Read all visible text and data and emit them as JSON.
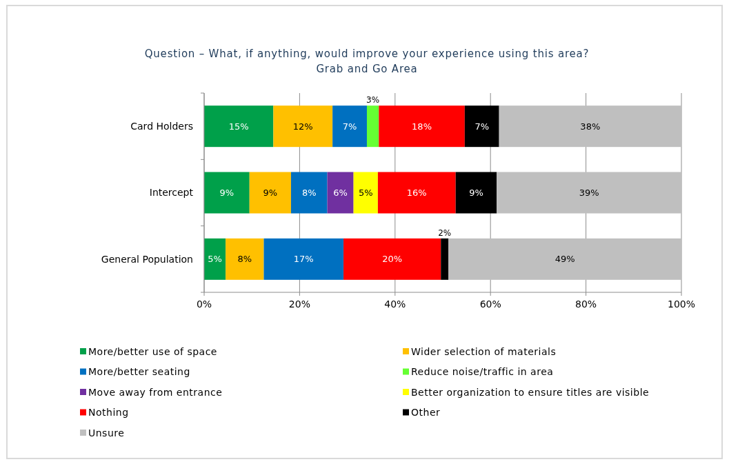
{
  "chart_data": {
    "type": "bar",
    "orientation": "horizontal",
    "stacked": true,
    "title": "Question – What, if anything, would improve your experience using this area?",
    "subtitle": "Grab and Go Area",
    "categories": [
      "Card Holders",
      "Intercept",
      "General Population"
    ],
    "series": [
      {
        "name": "More/better use of space",
        "color": "#00a04a",
        "values": [
          14.5,
          9.5,
          4.5
        ],
        "value_labels": [
          "15%",
          "9%",
          "5%"
        ]
      },
      {
        "name": "Wider selection of materials",
        "color": "#ffc000",
        "values": [
          12.4,
          8.7,
          8.0
        ],
        "value_labels": [
          "12%",
          "9%",
          "8%"
        ]
      },
      {
        "name": "More/better seating",
        "color": "#0070c0",
        "values": [
          7.2,
          7.6,
          16.7
        ],
        "value_labels": [
          "7%",
          "8%",
          "17%"
        ]
      },
      {
        "name": "Reduce noise/traffic in area",
        "color": "#66ff33",
        "values": [
          2.5,
          null,
          null
        ],
        "value_labels": [
          "3%",
          null,
          null
        ]
      },
      {
        "name": "Move away from entrance",
        "color": "#7030a0",
        "values": [
          null,
          5.5,
          null
        ],
        "value_labels": [
          null,
          "6%",
          null
        ]
      },
      {
        "name": "Better organization to ensure titles are visible",
        "color": "#ffff00",
        "values": [
          null,
          5.1,
          null
        ],
        "value_labels": [
          null,
          "5%",
          null
        ]
      },
      {
        "name": "Nothing",
        "color": "#ff0000",
        "values": [
          18.0,
          16.3,
          20.4
        ],
        "value_labels": [
          "18%",
          "16%",
          "20%"
        ]
      },
      {
        "name": "Other",
        "color": "#000000",
        "values": [
          7.2,
          8.6,
          1.6
        ],
        "value_labels": [
          "7%",
          "9%",
          "2%"
        ]
      },
      {
        "name": "Unsure",
        "color": "#bfbfbf",
        "values": [
          38.2,
          38.7,
          48.8
        ],
        "value_labels": [
          "38%",
          "39%",
          "49%"
        ]
      }
    ],
    "xlim": [
      0,
      100
    ],
    "xticks": [
      {
        "value": 0,
        "label": "0%"
      },
      {
        "value": 20,
        "label": "20%"
      },
      {
        "value": 40,
        "label": "40%"
      },
      {
        "value": 60,
        "label": "60%"
      },
      {
        "value": 80,
        "label": "80%"
      },
      {
        "value": 100,
        "label": "100%"
      }
    ],
    "grid": "x",
    "legend": "bottom"
  }
}
